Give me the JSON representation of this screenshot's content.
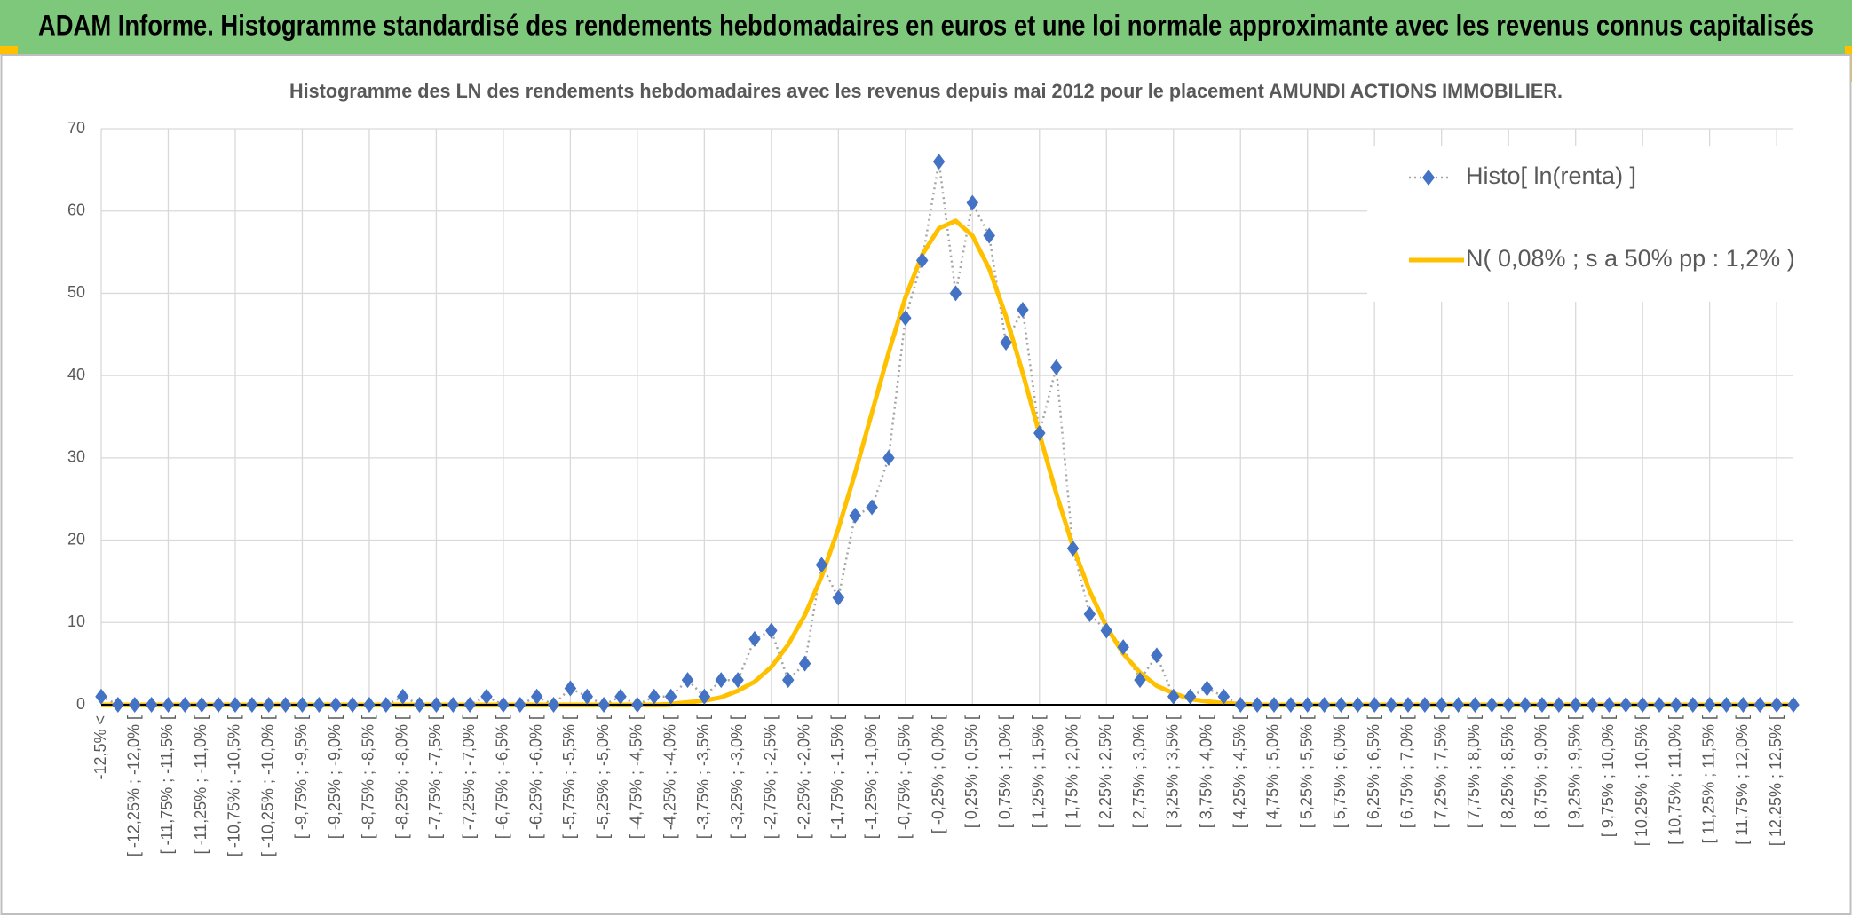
{
  "header": {
    "title": "ADAM Informe. Histogramme standardisé des rendements hebdomadaires en euros et une loi normale approximante avec les revenus connus capitalisés"
  },
  "chart_data": {
    "type": "line",
    "title": "Histogramme des LN des rendements hebdomadaires avec les revenus depuis mai 2012 pour le placement AMUNDI ACTIONS IMMOBILIER.",
    "categories": [
      "-12,5% <",
      null,
      "[ -12,25% ; -12,0% [",
      null,
      "[ -11,75% ; -11,5% [",
      null,
      "[ -11,25% ; -11,0% [",
      null,
      "[ -10,75% ; -10,5% [",
      null,
      "[ -10,25% ; -10,0% [",
      null,
      "[ -9,75% ; -9,5% [",
      null,
      "[ -9,25% ; -9,0% [",
      null,
      "[ -8,75% ; -8,5% [",
      null,
      "[ -8,25% ; -8,0% [",
      null,
      "[ -7,75% ; -7,5% [",
      null,
      "[ -7,25% ; -7,0% [",
      null,
      "[ -6,75% ; -6,5% [",
      null,
      "[ -6,25% ; -6,0% [",
      null,
      "[ -5,75% ; -5,5% [",
      null,
      "[ -5,25% ; -5,0% [",
      null,
      "[ -4,75% ; -4,5% [",
      null,
      "[ -4,25% ; -4,0% [",
      null,
      "[ -3,75% ; -3,5% [",
      null,
      "[ -3,25% ; -3,0% [",
      null,
      "[ -2,75% ; -2,5% [",
      null,
      "[ -2,25% ; -2,0% [",
      null,
      "[ -1,75% ; -1,5% [",
      null,
      "[ -1,25% ; -1,0% [",
      null,
      "[ -0,75% ; -0,5% [",
      null,
      "[ -0,25% ; 0,0% [",
      null,
      "[ 0,25% ; 0,5% [",
      null,
      "[ 0,75% ; 1,0% [",
      null,
      "[ 1,25% ; 1,5% [",
      null,
      "[ 1,75% ; 2,0% [",
      null,
      "[ 2,25% ; 2,5% [",
      null,
      "[ 2,75% ; 3,0% [",
      null,
      "[ 3,25% ; 3,5% [",
      null,
      "[ 3,75% ; 4,0% [",
      null,
      "[ 4,25% ; 4,5% [",
      null,
      "[ 4,75% ; 5,0% [",
      null,
      "[ 5,25% ; 5,5% [",
      null,
      "[ 5,75% ; 6,0% [",
      null,
      "[ 6,25% ; 6,5% [",
      null,
      "[ 6,75% ; 7,0% [",
      null,
      "[ 7,25% ; 7,5% [",
      null,
      "[ 7,75% ; 8,0% [",
      null,
      "[ 8,25% ; 8,5% [",
      null,
      "[ 8,75% ; 9,0% [",
      null,
      "[ 9,25% ; 9,5% [",
      null,
      "[ 9,75% ; 10,0% [",
      null,
      "[ 10,25% ; 10,5% [",
      null,
      "[ 10,75% ; 11,0% [",
      null,
      "[ 11,25% ; 11,5% [",
      null,
      "[ 11,75% ; 12,0% [",
      null,
      "[ 12,25% ; 12,5% [",
      null
    ],
    "series": [
      {
        "name": "Histo[ ln(renta) ]",
        "color": "#4472c4",
        "line_color": "#a5a5a5",
        "marker": "diamond",
        "values": [
          1,
          0,
          0,
          0,
          0,
          0,
          0,
          0,
          0,
          0,
          0,
          0,
          0,
          0,
          0,
          0,
          0,
          0,
          1,
          0,
          0,
          0,
          0,
          1,
          0,
          0,
          1,
          0,
          2,
          1,
          0,
          1,
          0,
          1,
          1,
          3,
          1,
          3,
          3,
          8,
          9,
          3,
          5,
          17,
          13,
          23,
          24,
          30,
          47,
          54,
          66,
          50,
          61,
          57,
          44,
          48,
          33,
          41,
          19,
          11,
          9,
          7,
          3,
          6,
          1,
          1,
          2,
          1,
          0,
          0,
          0,
          0,
          0,
          0,
          0,
          0,
          0,
          0,
          0,
          0,
          0,
          0,
          0,
          0,
          0,
          0,
          0,
          0,
          0,
          0,
          0,
          0,
          0,
          0,
          0,
          0,
          0,
          0,
          0,
          0,
          0,
          0
        ]
      },
      {
        "name": "N( 0,08% ; s a 50% pp : 1,2% )",
        "color": "#ffc000",
        "values": [
          0,
          0,
          0,
          0,
          0,
          0,
          0,
          0,
          0,
          0,
          0,
          0,
          0,
          0,
          0,
          0,
          0,
          0,
          0,
          0,
          0,
          0,
          0,
          0,
          0,
          0,
          0,
          0,
          0,
          0,
          0,
          0,
          0,
          0,
          0.1,
          0.3,
          0.5,
          0.9,
          1.7,
          2.8,
          4.6,
          7.3,
          10.9,
          15.6,
          21.4,
          28.2,
          35.5,
          42.8,
          49.5,
          54.7,
          57.9,
          58.8,
          57.0,
          53.0,
          47.2,
          40.3,
          32.9,
          25.7,
          19.2,
          13.8,
          9.5,
          6.2,
          3.9,
          2.3,
          1.4,
          0.7,
          0.4,
          0.2,
          0.1,
          0,
          0,
          0,
          0,
          0,
          0,
          0,
          0,
          0,
          0,
          0,
          0,
          0,
          0,
          0,
          0,
          0,
          0,
          0,
          0,
          0,
          0,
          0,
          0,
          0,
          0,
          0,
          0,
          0,
          0,
          0,
          0,
          0
        ]
      }
    ],
    "ylim": [
      0,
      70
    ],
    "yticks": [
      0,
      10,
      20,
      30,
      40,
      50,
      60,
      70
    ],
    "grid": true,
    "legend": "top-right"
  }
}
